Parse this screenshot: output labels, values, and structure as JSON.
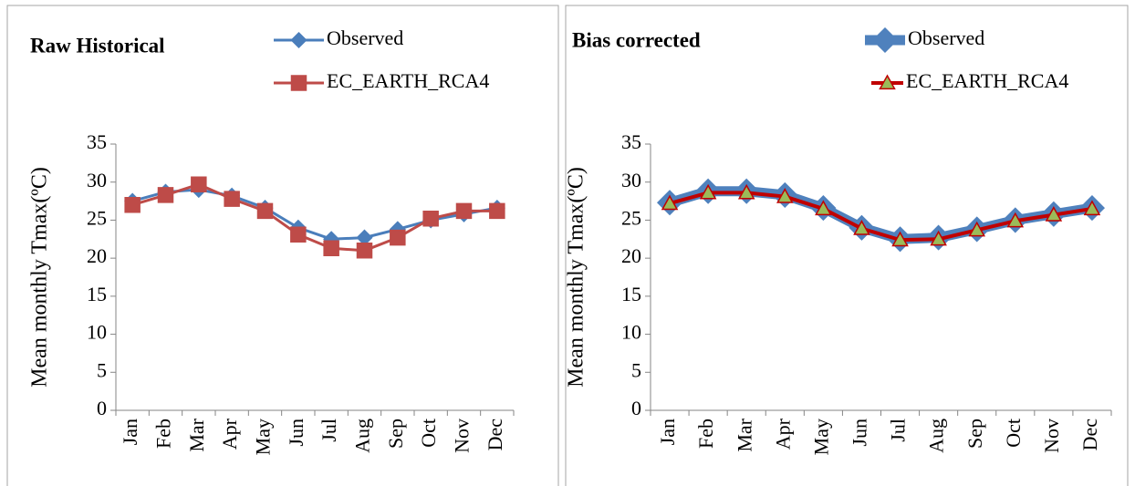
{
  "chart_data": [
    {
      "type": "line",
      "title": "Raw Historical",
      "ylabel": "Mean monthly Tmax(ºC)",
      "categories": [
        "Jan",
        "Feb",
        "Mar",
        "Apr",
        "May",
        "Jun",
        "Jul",
        "Aug",
        "Sep",
        "Oct",
        "Nov",
        "Dec"
      ],
      "series": [
        {
          "name": "Observed",
          "color": "#4a7ebb",
          "marker": "diamond",
          "marker_fill": "#4a7ebb",
          "line_width": 3,
          "values": [
            27.5,
            28.7,
            29.0,
            28.2,
            26.6,
            24.0,
            22.5,
            22.7,
            23.8,
            25.0,
            25.8,
            26.6
          ]
        },
        {
          "name": "EC_EARTH_RCA4",
          "color": "#be4b48",
          "marker": "square",
          "marker_fill": "#be4b48",
          "line_width": 3,
          "values": [
            27.0,
            28.3,
            29.7,
            27.8,
            26.2,
            23.1,
            21.3,
            21.0,
            22.7,
            25.2,
            26.2,
            26.2
          ]
        }
      ],
      "ylim": [
        0,
        35
      ],
      "yticks": [
        0,
        5,
        10,
        15,
        20,
        25,
        30,
        35
      ]
    },
    {
      "type": "line",
      "title": "Bias corrected",
      "ylabel": "Mean monthly Tmax(ºC)",
      "categories": [
        "Jan",
        "Feb",
        "Mar",
        "Apr",
        "May",
        "Jun",
        "Jul",
        "Aug",
        "Sep",
        "Oct",
        "Nov",
        "Dec"
      ],
      "series": [
        {
          "name": "Observed",
          "color": "#4f81bd",
          "marker": "diamond",
          "marker_fill": "#4f81bd",
          "line_width": 11,
          "values": [
            27.3,
            28.8,
            28.8,
            28.3,
            26.6,
            24.0,
            22.5,
            22.7,
            23.8,
            25.0,
            25.8,
            26.6
          ]
        },
        {
          "name": "EC_EARTH_RCA4",
          "color": "#c00000",
          "marker": "triangle",
          "marker_fill": "#9bbb59",
          "line_width": 4,
          "values": [
            27.2,
            28.6,
            28.6,
            28.1,
            26.5,
            23.9,
            22.4,
            22.5,
            23.7,
            24.9,
            25.7,
            26.5
          ]
        }
      ],
      "ylim": [
        0,
        35
      ],
      "yticks": [
        0,
        5,
        10,
        15,
        20,
        25,
        30,
        35
      ]
    }
  ]
}
